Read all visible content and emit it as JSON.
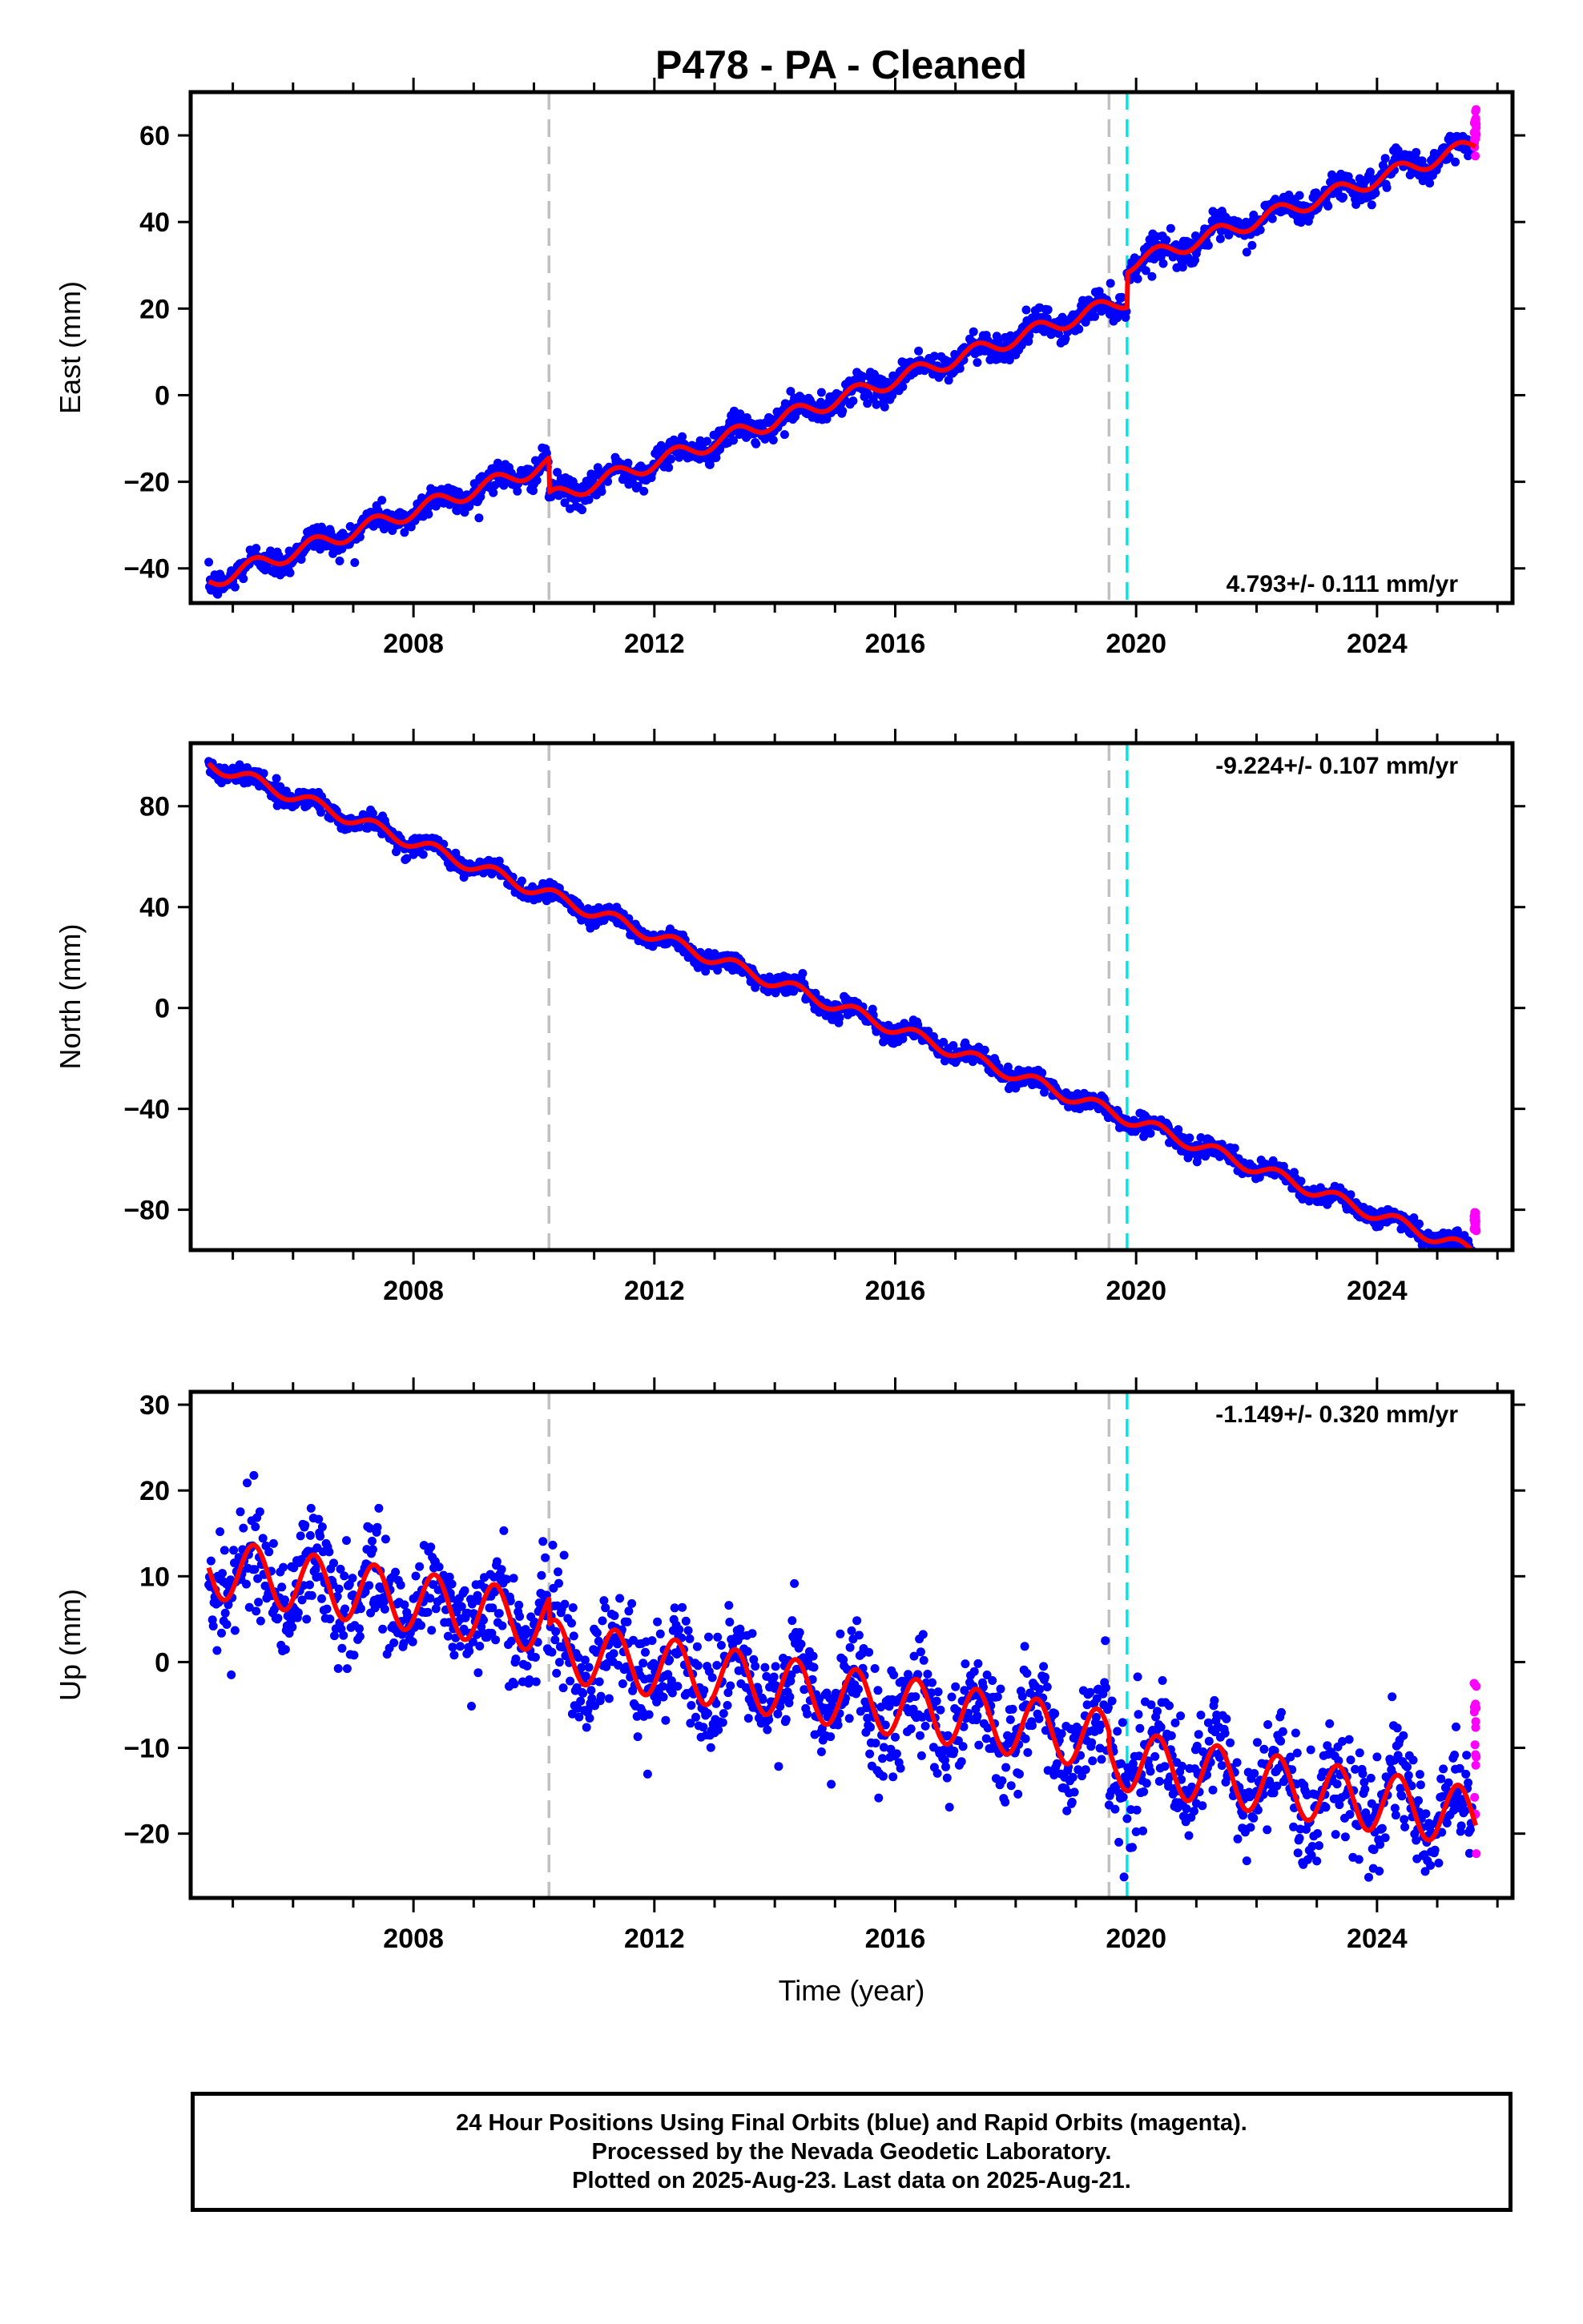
{
  "title": "P478  - PA - Cleaned",
  "colors": {
    "final_orbits": "#0000ff",
    "rapid_orbits": "#ff00ff",
    "model": "#ff0000",
    "equipment_change": "#c0c0c0",
    "earthquake": "#00e5e5"
  },
  "chart_data": [
    {
      "type": "scatter",
      "component": "east",
      "ylabel": "East (mm)",
      "ylim": [
        -48,
        70
      ],
      "yticks": [
        -40,
        -20,
        0,
        20,
        40,
        60
      ],
      "xlim": [
        2004.3,
        2026.25
      ],
      "xticks": [
        2008,
        2012,
        2016,
        2020,
        2024
      ],
      "rate_label": "4.793+/- 0.111 mm/yr",
      "rate_position": "bottom-right",
      "model": {
        "rate_mm_per_yr": 4.793,
        "offset_at_2004_6": -43,
        "annual_amplitude_mm": 1.8,
        "steps": [
          {
            "year": 2010.25,
            "mm": -8
          },
          {
            "year": 2019.85,
            "mm": 8
          }
        ]
      },
      "scatter_mm": 1.6,
      "rapid_range": [
        55,
        66
      ],
      "vertical_lines": [
        {
          "year": 2010.25,
          "kind": "equipment_change"
        },
        {
          "year": 2019.55,
          "kind": "equipment_change"
        },
        {
          "year": 2019.85,
          "kind": "earthquake"
        }
      ],
      "data_range": [
        2004.6,
        2025.64
      ]
    },
    {
      "type": "scatter",
      "component": "north",
      "ylabel": "North (mm)",
      "ylim": [
        -96,
        105
      ],
      "yticks": [
        -80,
        -40,
        0,
        40,
        80
      ],
      "xlim": [
        2004.3,
        2026.25
      ],
      "xticks": [
        2008,
        2012,
        2016,
        2020,
        2024
      ],
      "rate_label": "-9.224+/- 0.107 mm/yr",
      "rate_position": "top-right",
      "model": {
        "rate_mm_per_yr": -9.224,
        "offset_at_2004_6": 97,
        "annual_amplitude_mm": 2.5,
        "steps": []
      },
      "scatter_mm": 1.8,
      "rapid_range": [
        -89,
        -81
      ],
      "vertical_lines": [
        {
          "year": 2010.25,
          "kind": "equipment_change"
        },
        {
          "year": 2019.55,
          "kind": "equipment_change"
        },
        {
          "year": 2019.85,
          "kind": "earthquake"
        }
      ],
      "data_range": [
        2004.6,
        2025.64
      ]
    },
    {
      "type": "scatter",
      "component": "up",
      "ylabel": "Up (mm)",
      "xlabel": "Time (year)",
      "ylim": [
        -27.5,
        31.5
      ],
      "yticks": [
        -20,
        -10,
        0,
        10,
        20,
        30
      ],
      "xlim": [
        2004.3,
        2026.25
      ],
      "xticks": [
        2008,
        2012,
        2016,
        2020,
        2024
      ],
      "rate_label": "-1.149+/- 0.320 mm/yr",
      "rate_position": "top-right",
      "model": {
        "rate_mm_per_yr": -1.149,
        "offset_at_2004_6": 11,
        "annual_amplitude_mm": 3.5,
        "steps": [
          {
            "year": 2010.25,
            "mm": -3
          },
          {
            "year": 2019.55,
            "mm": -2
          }
        ]
      },
      "scatter_mm": 3.2,
      "rapid_range": [
        -24,
        -2
      ],
      "vertical_lines": [
        {
          "year": 2010.25,
          "kind": "equipment_change"
        },
        {
          "year": 2019.55,
          "kind": "equipment_change"
        },
        {
          "year": 2019.85,
          "kind": "earthquake"
        }
      ],
      "data_range": [
        2004.6,
        2025.64
      ]
    }
  ],
  "footer": {
    "line1": "24 Hour Positions Using Final Orbits (blue) and Rapid Orbits (magenta).",
    "line2": "Processed by the Nevada Geodetic Laboratory.",
    "line3": "Plotted on 2025-Aug-23. Last data on 2025-Aug-21."
  }
}
